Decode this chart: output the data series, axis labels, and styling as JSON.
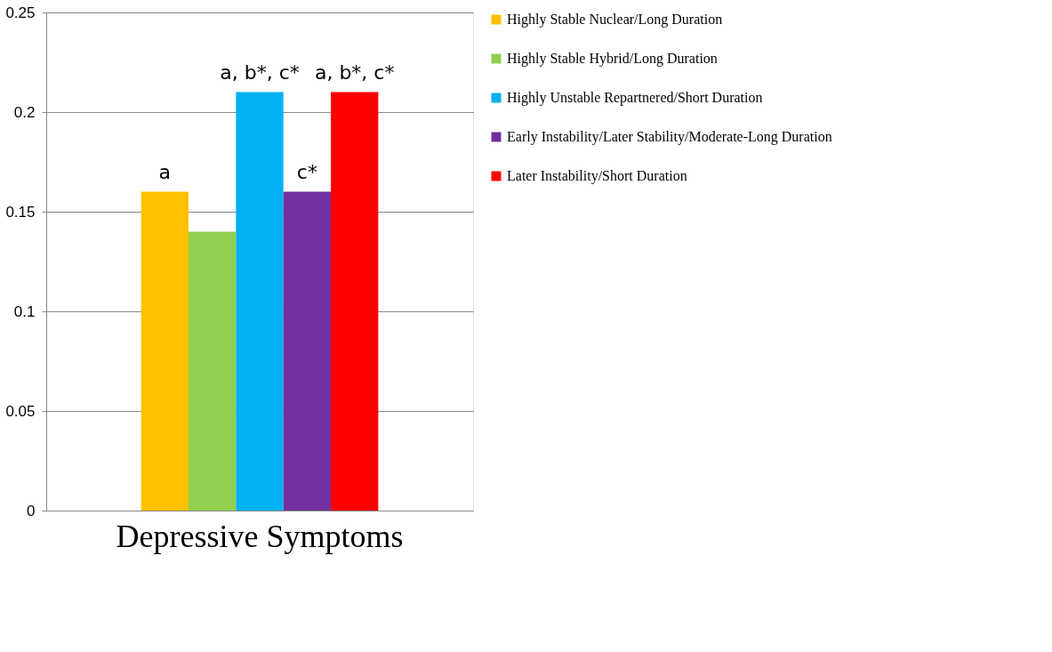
{
  "chart_data": {
    "type": "bar",
    "categories": [
      "Depressive Symptoms"
    ],
    "series": [
      {
        "name": "Highly Stable Nuclear/Long Duration",
        "color": "#ffc000",
        "values": [
          0.16
        ],
        "value_labels": [
          "a"
        ]
      },
      {
        "name": "Highly Stable Hybrid/Long Duration",
        "color": "#92d050",
        "values": [
          0.14
        ],
        "value_labels": [
          null
        ]
      },
      {
        "name": "Highly Unstable Repartnered/Short Duration",
        "color": "#00b0f0",
        "values": [
          0.21
        ],
        "value_labels": [
          "a, b*, c*"
        ]
      },
      {
        "name": "Early Instability/Later Stability/Moderate-Long Duration",
        "color": "#7030a0",
        "values": [
          0.16
        ],
        "value_labels": [
          "c*"
        ]
      },
      {
        "name": "Later Instability/Short Duration",
        "color": "#ff0000",
        "values": [
          0.21
        ],
        "value_labels": [
          "a, b*, c*"
        ]
      }
    ],
    "ylim": [
      0,
      0.25
    ],
    "yticks": [
      0,
      0.05,
      0.1,
      0.15,
      0.2,
      0.25
    ],
    "grid": "y",
    "legend": "right"
  }
}
